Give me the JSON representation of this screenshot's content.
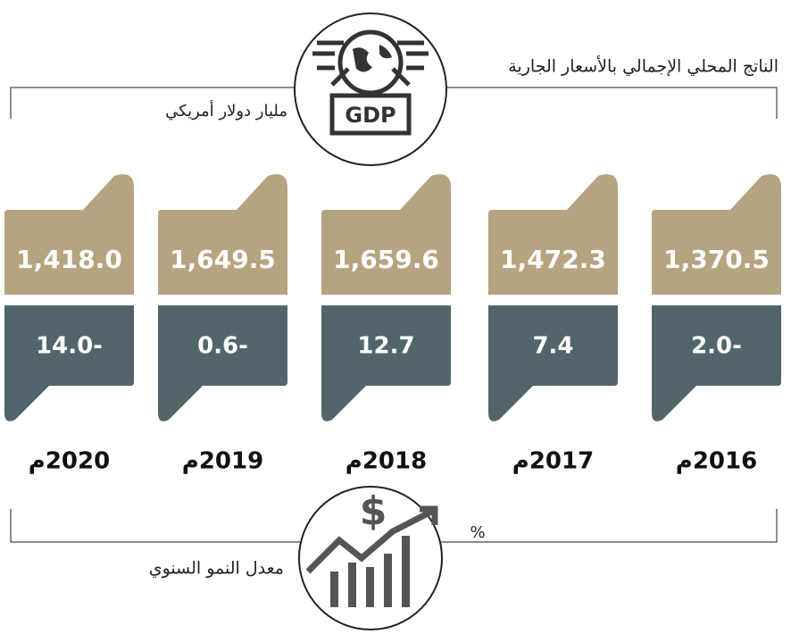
{
  "header": {
    "title": "الناتج المحلي الإجمالي بالأسعار الجارية",
    "unit": "مليار دولار أمريكي",
    "icon_label": "GDP"
  },
  "footer": {
    "title": "معدل النمو السنوي",
    "unit": "%"
  },
  "years": [
    {
      "year": "2020م",
      "gdp": "1,418.0",
      "growth": "14.0-"
    },
    {
      "year": "2019م",
      "gdp": "1,649.5",
      "growth": "0.6-"
    },
    {
      "year": "2018م",
      "gdp": "1,659.6",
      "growth": "12.7"
    },
    {
      "year": "2017م",
      "gdp": "1,472.3",
      "growth": "7.4"
    },
    {
      "year": "2016م",
      "gdp": "1,370.5",
      "growth": "2.0-"
    }
  ]
}
